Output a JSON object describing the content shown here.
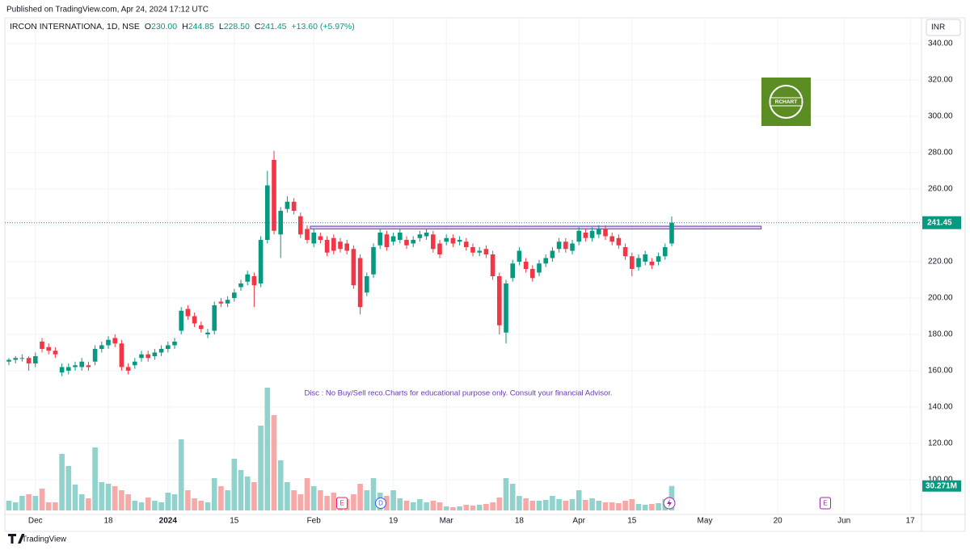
{
  "published": "Published on TradingView.com, Apr 24, 2024 17:12 UTC",
  "header": {
    "symbol": "IRCON INTERNATIONA, 1D, NSE",
    "fields": [
      {
        "key": "O",
        "value": "230.00"
      },
      {
        "key": "H",
        "value": "244.85"
      },
      {
        "key": "L",
        "value": "228.50"
      },
      {
        "key": "C",
        "value": "241.45"
      }
    ],
    "change": "+13.60 (+5.97%)"
  },
  "currency": "INR",
  "footer": "TradingView",
  "logo_text": "RCHART",
  "disclaimer": "Disc  : No Buy/Sell reco.Charts for educational purpose only.  Consult your financial Advisor.",
  "events": [
    {
      "label": "E"
    },
    {
      "label": "D"
    },
    {
      "label": "E"
    }
  ],
  "chart_data": {
    "type": "candlestick",
    "categories": [
      null,
      null,
      null,
      null,
      "Dec",
      null,
      null,
      null,
      null,
      null,
      null,
      null,
      null,
      null,
      null,
      "18",
      null,
      null,
      null,
      null,
      null,
      null,
      null,
      null,
      "2024",
      null,
      null,
      null,
      null,
      null,
      null,
      null,
      null,
      null,
      "15",
      null,
      null,
      null,
      null,
      null,
      null,
      null,
      null,
      null,
      null,
      null,
      "Feb",
      null,
      null,
      null,
      null,
      null,
      null,
      null,
      null,
      null,
      null,
      null,
      "19",
      null,
      null,
      null,
      null,
      null,
      null,
      null,
      "Mar",
      null,
      null,
      null,
      null,
      null,
      null,
      null,
      null,
      null,
      null,
      "18",
      null,
      null,
      null,
      null,
      null,
      null,
      null,
      null,
      "Apr",
      null,
      null,
      null,
      null,
      null,
      null,
      null,
      "15",
      null,
      null,
      null,
      null,
      null,
      null,
      null,
      null,
      null,
      null,
      "May",
      null,
      null,
      null,
      null,
      null,
      null,
      null,
      null,
      null,
      null,
      "20",
      null,
      null,
      null,
      null,
      null,
      null,
      null,
      null,
      null,
      "Jun",
      null,
      null,
      null,
      null,
      null,
      null,
      null,
      null,
      null,
      "17",
      null
    ],
    "open": [
      165,
      166,
      167,
      167,
      164,
      176,
      173,
      171,
      159,
      160,
      162,
      162,
      163,
      165,
      172,
      174,
      178,
      175,
      162,
      163,
      167,
      169,
      168,
      170,
      172,
      174,
      182,
      194,
      190,
      185,
      180,
      182,
      198,
      197,
      200,
      206,
      209,
      212,
      208,
      232,
      276,
      235,
      249,
      253,
      245,
      238,
      230,
      234,
      232,
      233,
      231,
      230,
      227,
      222,
      203,
      213,
      229,
      235,
      231,
      232,
      232,
      230,
      233,
      234,
      235,
      230,
      231,
      233,
      231,
      231,
      228,
      225,
      227,
      224,
      212,
      181,
      211,
      220,
      220,
      216,
      214,
      219,
      222,
      227,
      231,
      226,
      231,
      236,
      233,
      235,
      238,
      234,
      233,
      228,
      223,
      217,
      220,
      220,
      220,
      223,
      230,
      null,
      null,
      null,
      null,
      null,
      null,
      null,
      null,
      null,
      null,
      null,
      null,
      null,
      null,
      null,
      null,
      null,
      null,
      null,
      null,
      null,
      null,
      null,
      null,
      null,
      null,
      null,
      null,
      null,
      null,
      null,
      null,
      null,
      null,
      null,
      null,
      null
    ],
    "high": [
      167,
      168,
      169,
      168,
      170,
      178,
      175,
      173,
      164,
      164,
      165,
      167,
      165,
      174,
      176,
      179,
      180,
      177,
      164,
      167,
      171,
      171,
      172,
      174,
      176,
      178,
      195,
      196,
      192,
      187,
      183,
      198,
      200,
      201,
      205,
      210,
      215,
      214,
      234,
      270,
      281,
      250,
      256,
      255,
      247,
      240,
      238,
      236,
      234,
      235,
      233,
      232,
      229,
      224,
      214,
      230,
      238,
      237,
      236,
      238,
      234,
      234,
      237,
      238,
      237,
      232,
      235,
      235,
      234,
      233,
      230,
      228,
      229,
      226,
      214,
      210,
      221,
      228,
      222,
      218,
      221,
      224,
      228,
      233,
      233,
      232,
      239,
      238,
      239,
      240,
      240,
      236,
      235,
      230,
      225,
      224,
      226,
      222,
      225,
      230,
      244.85,
      null,
      null,
      null,
      null,
      null,
      null,
      null,
      null,
      null,
      null,
      null,
      null,
      null,
      null,
      null,
      null,
      null,
      null,
      null,
      null,
      null,
      null,
      null,
      null,
      null,
      null,
      null,
      null,
      null,
      null,
      null,
      null,
      null,
      null,
      null,
      null,
      null
    ],
    "low": [
      163,
      164,
      165,
      160,
      162,
      170,
      169,
      167,
      157,
      158,
      160,
      160,
      160,
      163,
      170,
      172,
      173,
      160,
      158,
      161,
      165,
      165,
      166,
      168,
      170,
      172,
      180,
      188,
      184,
      181,
      178,
      180,
      195,
      195,
      198,
      204,
      207,
      195,
      206,
      230,
      235,
      222,
      247,
      246,
      233,
      230,
      228,
      230,
      223,
      224,
      225,
      224,
      205,
      191,
      201,
      211,
      227,
      226,
      229,
      230,
      227,
      228,
      231,
      232,
      225,
      222,
      229,
      228,
      229,
      226,
      223,
      223,
      222,
      210,
      180,
      175,
      209,
      218,
      214,
      209,
      212,
      217,
      220,
      225,
      225,
      224,
      229,
      231,
      231,
      233,
      232,
      229,
      227,
      221,
      212,
      215,
      218,
      216,
      218,
      221,
      228.5,
      null,
      null,
      null,
      null,
      null,
      null,
      null,
      null,
      null,
      null,
      null,
      null,
      null,
      null,
      null,
      null,
      null,
      null,
      null,
      null,
      null,
      null,
      null,
      null,
      null,
      null,
      null,
      null,
      null,
      null,
      null,
      null,
      null,
      null,
      null,
      null,
      null
    ],
    "close": [
      166,
      167,
      167,
      164,
      168,
      172,
      171,
      169,
      162,
      162,
      163,
      165,
      162,
      172,
      174,
      177,
      175,
      162,
      160,
      165,
      169,
      167,
      170,
      172,
      174,
      176,
      193,
      190,
      186,
      183,
      181,
      196,
      197,
      199,
      203,
      208,
      213,
      207,
      232,
      262,
      237,
      248,
      253,
      248,
      235,
      232,
      236,
      232,
      225,
      226,
      227,
      226,
      207,
      195,
      212,
      228,
      236,
      228,
      234,
      236,
      229,
      232,
      235,
      236,
      227,
      224,
      233,
      230,
      232,
      228,
      225,
      226,
      224,
      212,
      185,
      208,
      219,
      226,
      216,
      211,
      219,
      222,
      226,
      231,
      227,
      230,
      237,
      233,
      237,
      238,
      234,
      231,
      229,
      223,
      216,
      222,
      224,
      218,
      223,
      228,
      241.45,
      null,
      null,
      null,
      null,
      null,
      null,
      null,
      null,
      null,
      null,
      null,
      null,
      null,
      null,
      null,
      null,
      null,
      null,
      null,
      null,
      null,
      null,
      null,
      null,
      null,
      null,
      null,
      null,
      null,
      null,
      null,
      null,
      null,
      null,
      null,
      null,
      null
    ],
    "volume": [
      12,
      10,
      18,
      20,
      18,
      27,
      10,
      10,
      70,
      55,
      32,
      20,
      15,
      78,
      35,
      33,
      30,
      25,
      20,
      12,
      10,
      16,
      12,
      10,
      22,
      20,
      88,
      25,
      15,
      12,
      10,
      40,
      30,
      25,
      64,
      50,
      42,
      35,
      105,
      152,
      118,
      62,
      35,
      25,
      20,
      40,
      30,
      25,
      18,
      22,
      15,
      14,
      20,
      33,
      25,
      40,
      22,
      18,
      25,
      15,
      12,
      10,
      14,
      10,
      12,
      10,
      5,
      4,
      5,
      7,
      6,
      7,
      8,
      10,
      16,
      40,
      33,
      18,
      15,
      12,
      12,
      13,
      18,
      14,
      12,
      14,
      25,
      13,
      15,
      12,
      10,
      10,
      9,
      12,
      14,
      8,
      7,
      8,
      9,
      14,
      30.271,
      null,
      null,
      null,
      null,
      null,
      null,
      null,
      null,
      null,
      null,
      null,
      null,
      null,
      null,
      null,
      null,
      null,
      null,
      null,
      null,
      null,
      null,
      null,
      null,
      null,
      null,
      null,
      null,
      null,
      null,
      null,
      null,
      null,
      null,
      null,
      null,
      null
    ],
    "last_volume_label": "30.271M",
    "up_color": "#089981",
    "down_color": "#f23645",
    "volume_up_color": "#92d2cc",
    "volume_down_color": "#f7a9a7",
    "zone": {
      "top": 239.5,
      "bottom": 238,
      "color": "#7e57c2"
    },
    "ylim": [
      80,
      350
    ],
    "yticks": [
      {
        "value": 100,
        "label": "100.00"
      },
      {
        "value": 120,
        "label": "120.00"
      },
      {
        "value": 140,
        "label": "140.00"
      },
      {
        "value": 160,
        "label": "160.00"
      },
      {
        "value": 180,
        "label": "180.00"
      },
      {
        "value": 200,
        "label": "200.00"
      },
      {
        "value": 220,
        "label": "220.00"
      },
      {
        "value": 240,
        "label": "240.00"
      },
      {
        "value": 260,
        "label": "260.00"
      },
      {
        "value": 280,
        "label": "280.00"
      },
      {
        "value": 300,
        "label": "300.00"
      },
      {
        "value": 320,
        "label": "320.00"
      },
      {
        "value": 340,
        "label": "340.00"
      }
    ],
    "grid": true
  }
}
